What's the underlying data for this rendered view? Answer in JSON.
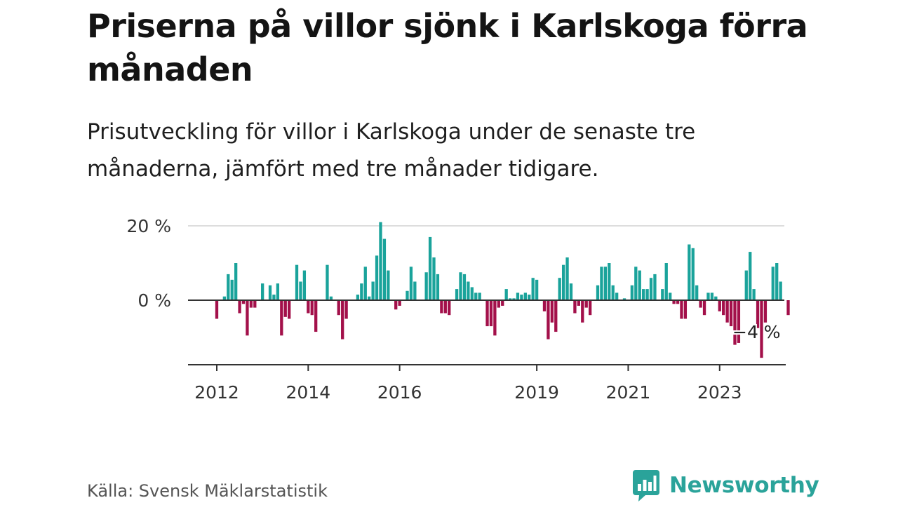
{
  "header": {
    "title": "Priserna på villor sjönk i Karlskoga förra månaden",
    "subtitle": "Prisutveckling för villor i Karlskoga under de senaste tre månaderna, jämfört med tre månader tidigare."
  },
  "footer": {
    "source": "Källa: Svensk Mäklarstatistik",
    "brand": "Newsworthy"
  },
  "colors": {
    "positive": "#1aa39b",
    "negative": "#a3104a",
    "grid": "#dddddd",
    "axis": "#333333",
    "brand": "#2aa39a"
  },
  "chart_data": {
    "type": "bar",
    "x_start": "2012-01",
    "x_end": "2023-12",
    "ylim": [
      -17,
      22
    ],
    "yticks": [
      {
        "value": 0,
        "label": "0 %"
      },
      {
        "value": 20,
        "label": "20 %"
      }
    ],
    "xticks": [
      {
        "value": "2012-01",
        "label": "2012"
      },
      {
        "value": "2014-01",
        "label": "2014"
      },
      {
        "value": "2016-01",
        "label": "2016"
      },
      {
        "value": "2019-01",
        "label": "2019"
      },
      {
        "value": "2021-01",
        "label": "2021"
      },
      {
        "value": "2023-01",
        "label": "2023"
      }
    ],
    "grid": true,
    "annotation": {
      "label": "−4 %",
      "value": -4
    },
    "series": [
      {
        "values": [
          -5,
          0,
          1,
          7,
          5.5,
          10,
          -3.5,
          -1,
          -9.5,
          -2,
          -2,
          0,
          4.5,
          0,
          4,
          1.5,
          4.5,
          -9.5,
          -4.5,
          -5,
          0,
          9.5,
          5,
          8,
          -3.5,
          -4,
          -8.5,
          0,
          0,
          9.5,
          1,
          0,
          -4,
          -10.5,
          -5,
          0,
          0,
          1.5,
          4.5,
          9,
          1,
          5,
          12,
          21,
          16.5,
          8,
          0,
          -2.5,
          -1.5,
          0,
          2.5,
          9,
          5,
          0,
          0,
          7.5,
          17,
          11.5,
          7,
          -3.5,
          -3.5,
          -4,
          0,
          3,
          7.5,
          7,
          5,
          3.5,
          2,
          2,
          0,
          -7,
          -7,
          -9.5,
          -2,
          -1.5,
          3,
          0.5,
          0.5,
          2,
          1.5,
          2,
          1.5,
          6,
          5.5,
          0,
          -3,
          -10.5,
          -6,
          -8.5,
          6,
          9.5,
          11.5,
          4.5,
          -3.5,
          -1.5,
          -6,
          -2,
          -4,
          0,
          4,
          9,
          9,
          10,
          4,
          2,
          0,
          0.5,
          0,
          4,
          9,
          8,
          3,
          3,
          6,
          7,
          0,
          3,
          10,
          2,
          -1,
          -1,
          -5,
          -5,
          15,
          14,
          4,
          -2,
          -4,
          2,
          2,
          1,
          -3,
          -4,
          -6,
          -7,
          -12,
          -11.5,
          0,
          8,
          13,
          3,
          -7.5,
          -15.5,
          -6,
          0,
          9,
          10,
          5,
          0,
          -4
        ]
      }
    ]
  }
}
